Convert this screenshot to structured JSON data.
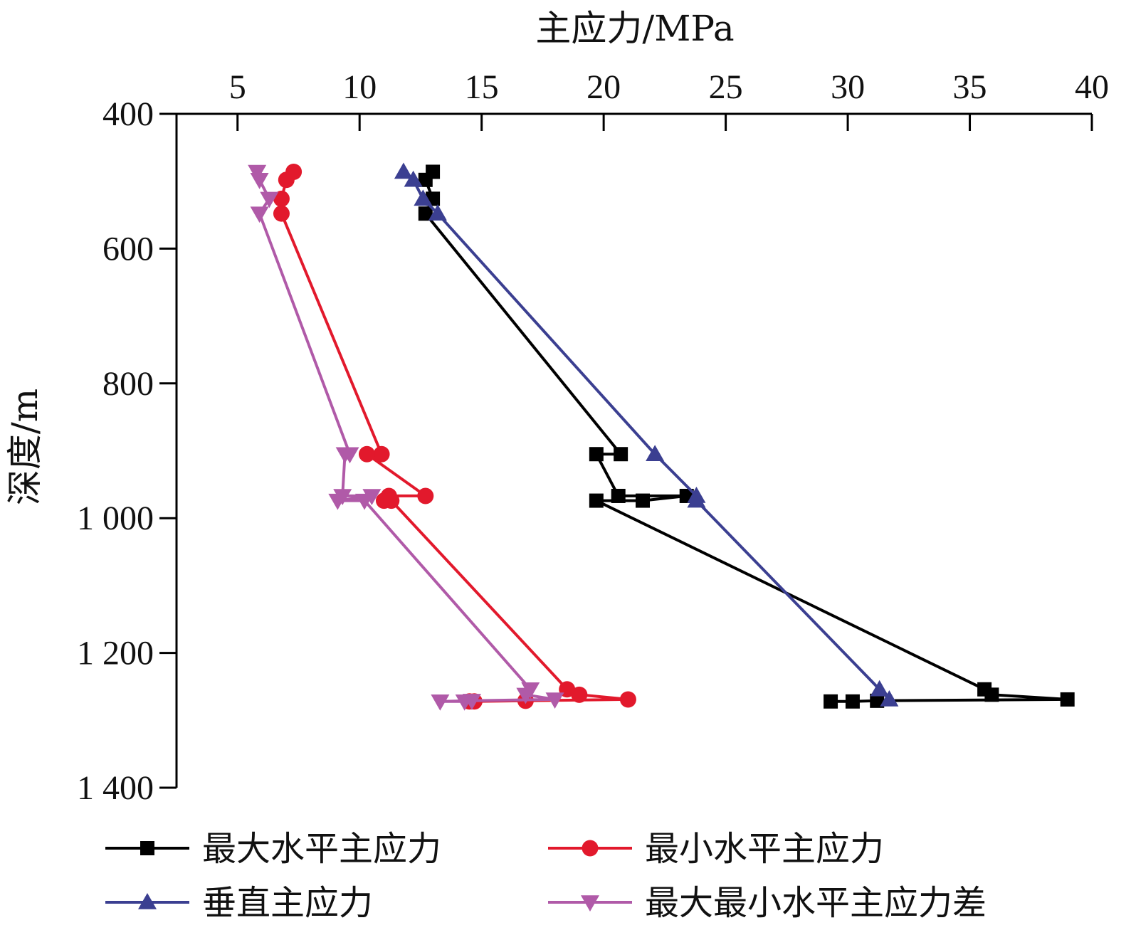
{
  "chart_data": {
    "type": "line",
    "title": "",
    "xlabel": "主应力/MPa",
    "ylabel": "深度/m",
    "x_axis_position": "top",
    "y_axis_inverted": true,
    "xlim": [
      2.5,
      40
    ],
    "ylim": [
      400,
      1400
    ],
    "x_ticks": [
      5,
      10,
      15,
      20,
      25,
      30,
      35,
      40
    ],
    "x_tick_labels": [
      "5",
      "10",
      "15",
      "20",
      "25",
      "30",
      "35",
      "40"
    ],
    "y_ticks": [
      400,
      600,
      800,
      1000,
      1200,
      1400
    ],
    "y_tick_labels": [
      "400",
      "600",
      "800",
      "1 000",
      "1 200",
      "1 400"
    ],
    "grid": false,
    "legend_position": "bottom",
    "series": [
      {
        "name": "最大水平主应力",
        "color": "#000000",
        "marker": "square",
        "points": [
          [
            13.0,
            486
          ],
          [
            12.7,
            498
          ],
          [
            13.0,
            526
          ],
          [
            12.7,
            548
          ],
          [
            20.7,
            905
          ],
          [
            19.7,
            905
          ],
          [
            20.6,
            967
          ],
          [
            23.4,
            967
          ],
          [
            21.6,
            974
          ],
          [
            19.7,
            974
          ],
          [
            35.6,
            1254
          ],
          [
            35.9,
            1262
          ],
          [
            39.0,
            1269
          ],
          [
            31.2,
            1271
          ],
          [
            30.2,
            1272
          ],
          [
            29.3,
            1272
          ]
        ]
      },
      {
        "name": "最小水平主应力",
        "color": "#e2192c",
        "marker": "circle",
        "points": [
          [
            7.3,
            486
          ],
          [
            7.0,
            498
          ],
          [
            6.8,
            526
          ],
          [
            6.8,
            548
          ],
          [
            10.9,
            905
          ],
          [
            10.3,
            905
          ],
          [
            12.7,
            967
          ],
          [
            11.2,
            967
          ],
          [
            11.0,
            974
          ],
          [
            11.3,
            974
          ],
          [
            18.5,
            1254
          ],
          [
            19.0,
            1262
          ],
          [
            21.0,
            1269
          ],
          [
            16.8,
            1271
          ],
          [
            14.7,
            1272
          ],
          [
            14.5,
            1272
          ]
        ]
      },
      {
        "name": "垂直主应力",
        "color": "#3b3f91",
        "marker": "triangle-up",
        "points": [
          [
            11.8,
            486
          ],
          [
            12.2,
            498
          ],
          [
            12.6,
            526
          ],
          [
            13.2,
            548
          ],
          [
            22.1,
            905
          ],
          [
            23.8,
            967
          ],
          [
            23.8,
            974
          ],
          [
            31.3,
            1254
          ],
          [
            31.7,
            1269
          ]
        ]
      },
      {
        "name": "最大最小水平主应力差",
        "color": "#b05aa8",
        "marker": "triangle-down",
        "points": [
          [
            5.8,
            486
          ],
          [
            5.9,
            498
          ],
          [
            6.3,
            526
          ],
          [
            5.9,
            548
          ],
          [
            9.6,
            905
          ],
          [
            9.4,
            905
          ],
          [
            9.3,
            967
          ],
          [
            10.5,
            967
          ],
          [
            9.1,
            974
          ],
          [
            10.2,
            974
          ],
          [
            17.0,
            1254
          ],
          [
            16.8,
            1262
          ],
          [
            18.0,
            1269
          ],
          [
            14.6,
            1271
          ],
          [
            13.3,
            1272
          ],
          [
            14.3,
            1272
          ]
        ]
      }
    ]
  }
}
